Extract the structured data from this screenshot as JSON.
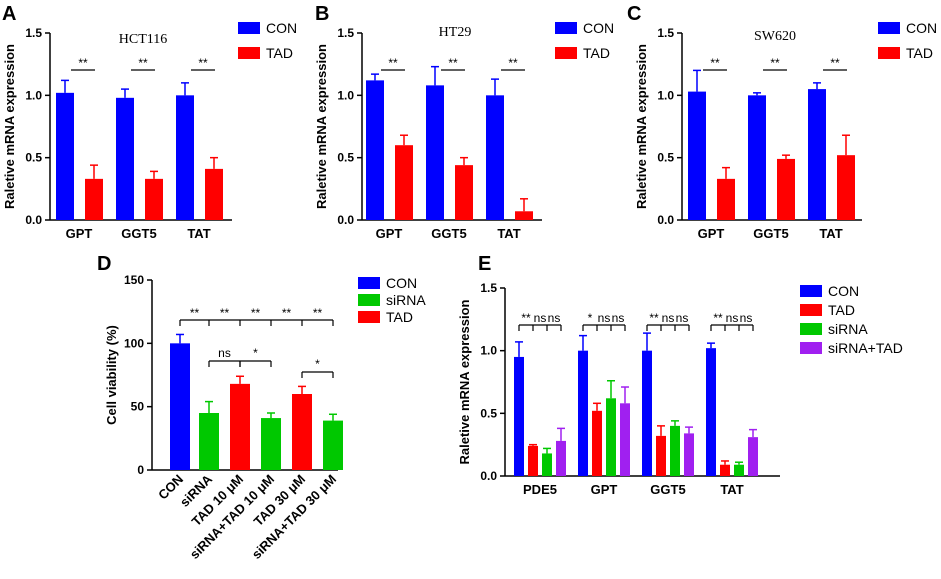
{
  "panel_letters": [
    "A",
    "B",
    "C",
    "D",
    "E"
  ],
  "colors": {
    "CON": "#0000ff",
    "TAD": "#ff0000",
    "siRNA": "#00c800",
    "siRNA+TAD": "#a020f0"
  },
  "chart_data": [
    {
      "id": "A",
      "type": "bar",
      "title": "HCT116",
      "categories": [
        "GPT",
        "GGT5",
        "TAT"
      ],
      "ylabel": "Raletive mRNA  expression",
      "ylim": [
        0,
        1.5
      ],
      "yticks": [
        "0.0",
        "0.5",
        "1.0",
        "1.5"
      ],
      "legend": [
        "CON",
        "TAD"
      ],
      "series": [
        {
          "name": "CON",
          "values": [
            1.02,
            0.98,
            1.0
          ],
          "errors": [
            0.1,
            0.07,
            0.1
          ]
        },
        {
          "name": "TAD",
          "values": [
            0.33,
            0.33,
            0.41
          ],
          "errors": [
            0.11,
            0.06,
            0.09
          ]
        }
      ],
      "significance": [
        "**",
        "**",
        "**"
      ]
    },
    {
      "id": "B",
      "type": "bar",
      "title": "HT29",
      "categories": [
        "GPT",
        "GGT5",
        "TAT"
      ],
      "ylabel": "Raletive mRNA  expression",
      "ylim": [
        0,
        1.5
      ],
      "yticks": [
        "0.0",
        "0.5",
        "1.0",
        "1.5"
      ],
      "legend": [
        "CON",
        "TAD"
      ],
      "series": [
        {
          "name": "CON",
          "values": [
            1.12,
            1.08,
            1.0
          ],
          "errors": [
            0.05,
            0.15,
            0.13
          ]
        },
        {
          "name": "TAD",
          "values": [
            0.6,
            0.44,
            0.07
          ],
          "errors": [
            0.08,
            0.06,
            0.1
          ]
        }
      ],
      "significance": [
        "**",
        "**",
        "**"
      ]
    },
    {
      "id": "C",
      "type": "bar",
      "title": "SW620",
      "categories": [
        "GPT",
        "GGT5",
        "TAT"
      ],
      "ylabel": "Raletive mRNA  expression",
      "ylim": [
        0,
        1.5
      ],
      "yticks": [
        "0.0",
        "0.5",
        "1.0",
        "1.5"
      ],
      "legend": [
        "CON",
        "TAD"
      ],
      "series": [
        {
          "name": "CON",
          "values": [
            1.03,
            1.0,
            1.05
          ],
          "errors": [
            0.17,
            0.02,
            0.05
          ]
        },
        {
          "name": "TAD",
          "values": [
            0.33,
            0.49,
            0.52
          ],
          "errors": [
            0.09,
            0.03,
            0.16
          ]
        }
      ],
      "significance": [
        "**",
        "**",
        "**"
      ]
    },
    {
      "id": "D",
      "type": "bar",
      "title": "",
      "categories": [
        "CON",
        "siRNA",
        "TAD 10 μM",
        "siRNA+TAD 10 μM",
        "TAD 30 μM",
        "siRNA+TAD 30 μM"
      ],
      "ylabel": "Cell viability (%)",
      "ylim": [
        0,
        150
      ],
      "yticks": [
        "0",
        "50",
        "100",
        "150"
      ],
      "legend": [
        "CON",
        "siRNA",
        "TAD"
      ],
      "bars": [
        {
          "series": "CON",
          "value": 100,
          "error": 7
        },
        {
          "series": "siRNA",
          "value": 45,
          "error": 9
        },
        {
          "series": "TAD",
          "value": 68,
          "error": 6
        },
        {
          "series": "siRNA",
          "value": 41,
          "error": 4
        },
        {
          "series": "TAD",
          "value": 60,
          "error": 6
        },
        {
          "series": "siRNA",
          "value": 39,
          "error": 5
        }
      ],
      "significance_top": [
        "**",
        "**",
        "**",
        "**",
        "**"
      ],
      "significance_pairs": [
        {
          "from": 1,
          "to": 2,
          "label": "ns"
        },
        {
          "from": 2,
          "to": 3,
          "label": "*"
        },
        {
          "from": 4,
          "to": 5,
          "label": "*"
        }
      ]
    },
    {
      "id": "E",
      "type": "bar",
      "title": "",
      "categories": [
        "PDE5",
        "GPT",
        "GGT5",
        "TAT"
      ],
      "ylabel": "Raletive mRNA  expression",
      "ylim": [
        0,
        1.5
      ],
      "yticks": [
        "0.0",
        "0.5",
        "1.0",
        "1.5"
      ],
      "legend": [
        "CON",
        "TAD",
        "siRNA",
        "siRNA+TAD"
      ],
      "series": [
        {
          "name": "CON",
          "values": [
            0.95,
            1.0,
            1.0,
            1.02
          ],
          "errors": [
            0.12,
            0.12,
            0.14,
            0.04
          ]
        },
        {
          "name": "TAD",
          "values": [
            0.24,
            0.52,
            0.32,
            0.09
          ],
          "errors": [
            0.01,
            0.06,
            0.08,
            0.03
          ]
        },
        {
          "name": "siRNA",
          "values": [
            0.18,
            0.62,
            0.4,
            0.09
          ],
          "errors": [
            0.04,
            0.14,
            0.04,
            0.02
          ]
        },
        {
          "name": "siRNA+TAD",
          "values": [
            0.28,
            0.58,
            0.34,
            0.31
          ],
          "errors": [
            0.1,
            0.13,
            0.05,
            0.06
          ]
        }
      ],
      "significance": [
        [
          "**",
          "ns",
          "ns"
        ],
        [
          "*",
          "ns",
          "ns"
        ],
        [
          "**",
          "ns",
          "ns"
        ],
        [
          "**",
          "ns",
          "ns"
        ]
      ]
    }
  ]
}
